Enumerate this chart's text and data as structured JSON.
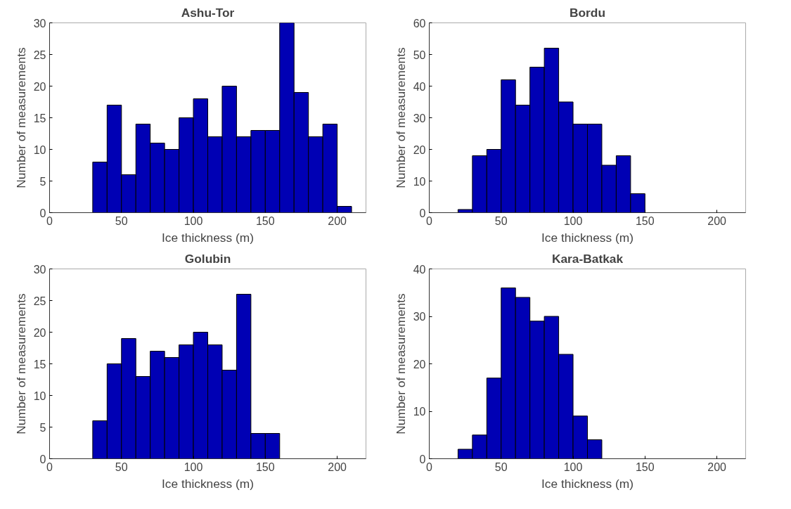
{
  "chart_data": [
    {
      "type": "histogram",
      "title": "Ashu-Tor",
      "xlabel": "Ice thickness (m)",
      "ylabel": "Number of measurements",
      "bins": [
        30,
        40,
        50,
        60,
        70,
        80,
        90,
        100,
        110,
        120,
        130,
        140,
        150,
        160,
        170,
        180,
        190,
        200,
        210
      ],
      "values": [
        8,
        17,
        6,
        14,
        11,
        10,
        15,
        18,
        12,
        20,
        12,
        13,
        13,
        30,
        19,
        12,
        14,
        1
      ],
      "color": "#0000b4",
      "xlim": [
        0,
        220
      ],
      "xticks": [
        0,
        50,
        100,
        150,
        200
      ],
      "ylim": [
        0,
        30
      ],
      "yticks": [
        0,
        5,
        10,
        15,
        20,
        25,
        30
      ]
    },
    {
      "type": "histogram",
      "title": "Bordu",
      "xlabel": "Ice thickness (m)",
      "ylabel": "Number of measurements",
      "bins": [
        20,
        30,
        40,
        50,
        60,
        70,
        80,
        90,
        100,
        110,
        120,
        130,
        140,
        150
      ],
      "values": [
        1,
        18,
        20,
        42,
        34,
        46,
        52,
        35,
        28,
        28,
        15,
        18,
        6
      ],
      "color": "#0000b4",
      "xlim": [
        0,
        220
      ],
      "xticks": [
        0,
        50,
        100,
        150,
        200
      ],
      "ylim": [
        0,
        60
      ],
      "yticks": [
        0,
        10,
        20,
        30,
        40,
        50,
        60
      ]
    },
    {
      "type": "histogram",
      "title": "Golubin",
      "xlabel": "Ice thickness (m)",
      "ylabel": "Number of measurements",
      "bins": [
        30,
        40,
        50,
        60,
        70,
        80,
        90,
        100,
        110,
        120,
        130,
        140,
        150,
        160
      ],
      "values": [
        6,
        15,
        19,
        13,
        17,
        16,
        18,
        20,
        18,
        14,
        26,
        4,
        4
      ],
      "color": "#0000b4",
      "xlim": [
        0,
        220
      ],
      "xticks": [
        0,
        50,
        100,
        150,
        200
      ],
      "ylim": [
        0,
        30
      ],
      "yticks": [
        0,
        5,
        10,
        15,
        20,
        25,
        30
      ]
    },
    {
      "type": "histogram",
      "title": "Kara-Batkak",
      "xlabel": "Ice thickness (m)",
      "ylabel": "Number of measurements",
      "bins": [
        20,
        30,
        40,
        50,
        60,
        70,
        80,
        90,
        100,
        110,
        120
      ],
      "values": [
        2,
        5,
        17,
        36,
        34,
        29,
        30,
        22,
        9,
        4
      ],
      "color": "#0000b4",
      "xlim": [
        0,
        220
      ],
      "xticks": [
        0,
        50,
        100,
        150,
        200
      ],
      "ylim": [
        0,
        40
      ],
      "yticks": [
        0,
        10,
        20,
        30,
        40
      ]
    }
  ]
}
